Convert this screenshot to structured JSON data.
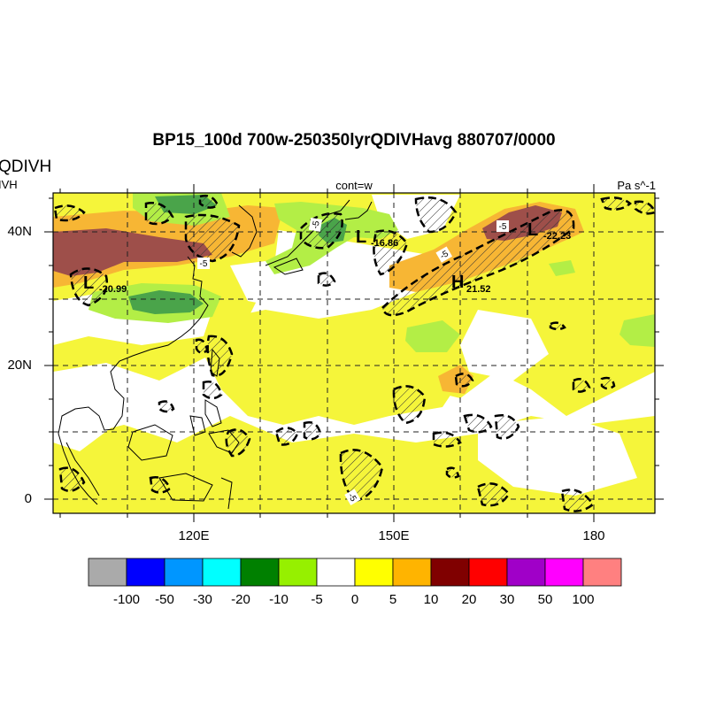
{
  "title": "BP15_100d 700w-250350lyrQDIVHavg  880707/0000",
  "left_string": "QDIVH",
  "left_substring": "IVH",
  "center_string": "cont=w",
  "right_string": "Pa s^-1",
  "axes": {
    "lat_ticks": [
      "40N",
      "20N",
      "0"
    ],
    "lon_ticks": [
      "120E",
      "150E",
      "180"
    ]
  },
  "extrema": [
    {
      "type": "L",
      "value": "-20.99"
    },
    {
      "type": "L",
      "value": "-16.86"
    },
    {
      "type": "L",
      "value": "-22.23"
    },
    {
      "type": "H",
      "value": "21.52"
    }
  ],
  "contour_labels": [
    "-5",
    "-5",
    "-5",
    "-5",
    "-5",
    "-5"
  ],
  "colorbar": {
    "labels": [
      "-100",
      "-50",
      "-30",
      "-20",
      "-10",
      "-5",
      "0",
      "5",
      "10",
      "20",
      "30",
      "50",
      "100"
    ],
    "colors": [
      "#aaaaaa",
      "#0000ff",
      "#0096ff",
      "#00ffff",
      "#008000",
      "#96f000",
      "#ffffff",
      "#ffff00",
      "#ffb400",
      "#800000",
      "#ff0000",
      "#a000c8",
      "#ff00ff",
      "#ff8080"
    ]
  },
  "map_colors": {
    "yellow": "#f5f53a",
    "orange": "#f7b634",
    "brown": "#9e4f4a",
    "green": "#4aa44a",
    "light_green": "#b3ee46"
  }
}
